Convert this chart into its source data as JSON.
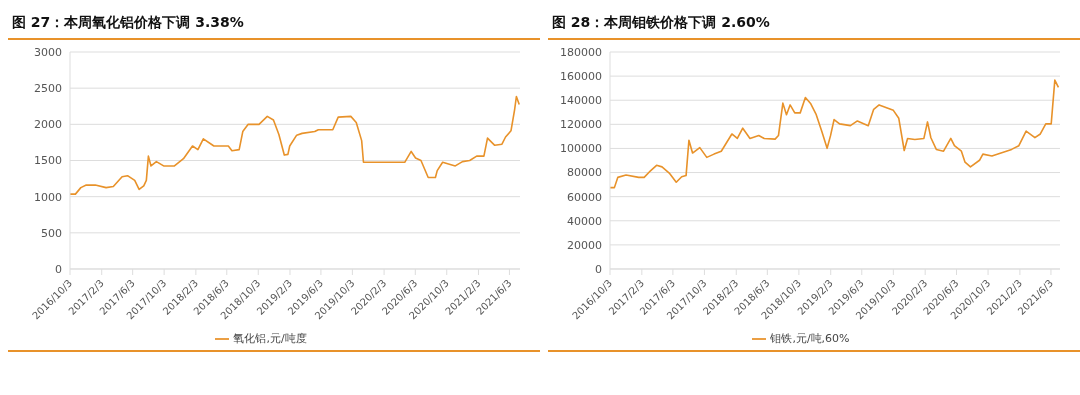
{
  "chart_data": [
    {
      "type": "line",
      "title": "图 27：本周氧化铝价格下调 3.38%",
      "grid": "y",
      "legend": "bottom",
      "marker": "none",
      "line_style": "solid",
      "x": [
        "2016-10-03",
        "2016-10-24",
        "2016-11-14",
        "2016-12-05",
        "2017-01-09",
        "2017-02-20",
        "2017-03-20",
        "2017-04-23",
        "2017-05-14",
        "2017-06-11",
        "2017-06-28",
        "2017-07-16",
        "2017-07-26",
        "2017-08-03",
        "2017-08-13",
        "2017-09-03",
        "2017-10-01",
        "2017-11-12",
        "2017-12-17",
        "2018-01-21",
        "2018-02-11",
        "2018-03-04",
        "2018-04-14",
        "2018-06-09",
        "2018-06-23",
        "2018-07-21",
        "2018-08-04",
        "2018-08-25",
        "2018-10-06",
        "2018-11-07",
        "2018-12-01",
        "2018-12-22",
        "2019-01-12",
        "2019-01-26",
        "2019-02-02",
        "2019-03-01",
        "2019-03-22",
        "2019-05-10",
        "2019-05-24",
        "2019-07-19",
        "2019-08-09",
        "2019-09-27",
        "2019-10-18",
        "2019-11-08",
        "2019-11-15",
        "2020-04-23",
        "2020-05-18",
        "2020-06-04",
        "2020-06-25",
        "2020-07-23",
        "2020-08-20",
        "2020-08-27",
        "2020-09-17",
        "2020-11-05",
        "2020-12-03",
        "2020-12-31",
        "2021-01-27",
        "2021-02-24",
        "2021-03-10",
        "2021-04-07",
        "2021-05-05",
        "2021-05-19",
        "2021-06-09",
        "2021-06-23",
        "2021-06-30",
        "2021-07-11"
      ],
      "series": [
        {
          "name": "氧化铝,元/吨度",
          "color": "#e8922a",
          "values": [
            1035,
            1035,
            1125,
            1160,
            1160,
            1125,
            1140,
            1275,
            1290,
            1225,
            1100,
            1150,
            1225,
            1560,
            1425,
            1485,
            1425,
            1425,
            1525,
            1700,
            1650,
            1800,
            1700,
            1700,
            1635,
            1650,
            1900,
            2000,
            2000,
            2110,
            2060,
            1860,
            1575,
            1585,
            1700,
            1850,
            1875,
            1900,
            1925,
            1925,
            2100,
            2110,
            2025,
            1775,
            1475,
            1475,
            1625,
            1535,
            1500,
            1265,
            1265,
            1360,
            1475,
            1425,
            1485,
            1500,
            1560,
            1560,
            1810,
            1710,
            1725,
            1825,
            1910,
            2200,
            2385,
            2275
          ]
        }
      ],
      "xlim": [
        "2016-10-03",
        "2021-07-14"
      ],
      "xticks": [
        {
          "value": "2016-10-03",
          "label": "2016/10/3"
        },
        {
          "value": "2017-02-03",
          "label": "2017/2/3"
        },
        {
          "value": "2017-06-03",
          "label": "2017/6/3"
        },
        {
          "value": "2017-10-03",
          "label": "2017/10/3"
        },
        {
          "value": "2018-02-03",
          "label": "2018/2/3"
        },
        {
          "value": "2018-06-03",
          "label": "2018/6/3"
        },
        {
          "value": "2018-10-03",
          "label": "2018/10/3"
        },
        {
          "value": "2019-02-03",
          "label": "2019/2/3"
        },
        {
          "value": "2019-06-03",
          "label": "2019/6/3"
        },
        {
          "value": "2019-10-03",
          "label": "2019/10/3"
        },
        {
          "value": "2020-02-03",
          "label": "2020/2/3"
        },
        {
          "value": "2020-06-03",
          "label": "2020/6/3"
        },
        {
          "value": "2020-10-03",
          "label": "2020/10/3"
        },
        {
          "value": "2021-02-03",
          "label": "2021/2/3"
        },
        {
          "value": "2021-06-03",
          "label": "2021/6/3"
        }
      ],
      "ylim": [
        0,
        3000
      ],
      "yticks": [
        0,
        500,
        1000,
        1500,
        2000,
        2500,
        3000
      ]
    },
    {
      "type": "line",
      "title": "图 28：本周钼铁价格下调 2.60%",
      "grid": "y",
      "legend": "bottom",
      "marker": "none",
      "line_style": "solid",
      "x": [
        "2016-10-03",
        "2016-10-20",
        "2016-11-02",
        "2016-12-04",
        "2017-01-22",
        "2017-02-12",
        "2017-03-04",
        "2017-04-01",
        "2017-04-22",
        "2017-05-20",
        "2017-06-16",
        "2017-07-07",
        "2017-07-24",
        "2017-08-04",
        "2017-08-18",
        "2017-09-15",
        "2017-10-12",
        "2017-11-09",
        "2017-12-07",
        "2018-01-17",
        "2018-02-07",
        "2018-02-28",
        "2018-03-28",
        "2018-05-01",
        "2018-05-22",
        "2018-07-03",
        "2018-07-16",
        "2018-08-02",
        "2018-08-16",
        "2018-08-30",
        "2018-09-17",
        "2018-10-08",
        "2018-10-28",
        "2018-11-18",
        "2018-12-09",
        "2018-12-30",
        "2019-01-20",
        "2019-02-02",
        "2019-02-16",
        "2019-03-09",
        "2019-04-20",
        "2019-05-17",
        "2019-06-28",
        "2019-07-19",
        "2019-08-09",
        "2019-10-03",
        "2019-10-24",
        "2019-11-14",
        "2019-11-27",
        "2019-12-25",
        "2020-01-29",
        "2020-02-12",
        "2020-02-25",
        "2020-03-17",
        "2020-04-14",
        "2020-05-12",
        "2020-05-26",
        "2020-06-22",
        "2020-07-06",
        "2020-07-27",
        "2020-08-31",
        "2020-09-13",
        "2020-10-18",
        "2020-11-22",
        "2021-01-02",
        "2021-01-30",
        "2021-02-27",
        "2021-04-02",
        "2021-04-23",
        "2021-05-14",
        "2021-06-04",
        "2021-06-11",
        "2021-06-18",
        "2021-07-02"
      ],
      "series": [
        {
          "name": "钼铁,元/吨,60%",
          "color": "#e8922a",
          "values": [
            67500,
            67500,
            76000,
            78000,
            76000,
            76000,
            80500,
            86000,
            84700,
            79600,
            72000,
            76500,
            77500,
            106800,
            96200,
            100700,
            92600,
            95300,
            97700,
            112000,
            108300,
            116800,
            108300,
            110700,
            108300,
            107700,
            110700,
            137600,
            128000,
            136100,
            129500,
            129500,
            142200,
            137000,
            128000,
            114400,
            100100,
            110400,
            124000,
            120400,
            118900,
            122800,
            118900,
            132500,
            136100,
            131600,
            125000,
            98300,
            108300,
            107400,
            108300,
            122000,
            108900,
            99200,
            97700,
            108300,
            102300,
            97700,
            88600,
            84700,
            90200,
            95300,
            93800,
            96200,
            99200,
            102300,
            114400,
            108900,
            112000,
            120400,
            120400,
            138600,
            156700,
            150700
          ]
        }
      ],
      "xlim": [
        "2016-10-03",
        "2021-07-08"
      ],
      "xticks": [
        {
          "value": "2016-10-03",
          "label": "2016/10/3"
        },
        {
          "value": "2017-02-03",
          "label": "2017/2/3"
        },
        {
          "value": "2017-06-03",
          "label": "2017/6/3"
        },
        {
          "value": "2017-10-03",
          "label": "2017/10/3"
        },
        {
          "value": "2018-02-03",
          "label": "2018/2/3"
        },
        {
          "value": "2018-06-03",
          "label": "2018/6/3"
        },
        {
          "value": "2018-10-03",
          "label": "2018/10/3"
        },
        {
          "value": "2019-02-03",
          "label": "2019/2/3"
        },
        {
          "value": "2019-06-03",
          "label": "2019/6/3"
        },
        {
          "value": "2019-10-03",
          "label": "2019/10/3"
        },
        {
          "value": "2020-02-03",
          "label": "2020/2/3"
        },
        {
          "value": "2020-06-03",
          "label": "2020/6/3"
        },
        {
          "value": "2020-10-03",
          "label": "2020/10/3"
        },
        {
          "value": "2021-02-03",
          "label": "2021/2/3"
        },
        {
          "value": "2021-06-03",
          "label": "2021/6/3"
        }
      ],
      "ylim": [
        0,
        180000
      ],
      "yticks": [
        0,
        20000,
        40000,
        60000,
        80000,
        100000,
        120000,
        140000,
        160000,
        180000
      ]
    }
  ]
}
